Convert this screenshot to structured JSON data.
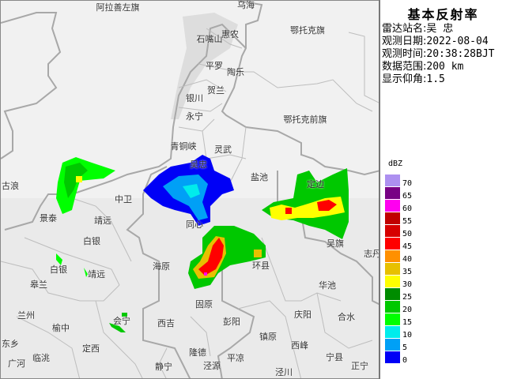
{
  "panel": {
    "title": "基本反射率",
    "rows": [
      {
        "key": "雷达站名:",
        "value": "吴 忠"
      },
      {
        "key": "观测日期:",
        "value": "2022-08-04"
      },
      {
        "key": "观测时间:",
        "value": "20:38:28BJT"
      },
      {
        "key": "数据范围:",
        "value": "200 km"
      },
      {
        "key": "显示仰角:",
        "value": "1.5"
      }
    ]
  },
  "legend": {
    "unit": "dBZ",
    "items": [
      {
        "value": "70",
        "color": "#ad90f0"
      },
      {
        "value": "65",
        "color": "#780084"
      },
      {
        "value": "60",
        "color": "#ff00f0"
      },
      {
        "value": "55",
        "color": "#c00000"
      },
      {
        "value": "50",
        "color": "#d60000"
      },
      {
        "value": "45",
        "color": "#ff0000"
      },
      {
        "value": "40",
        "color": "#ff9000"
      },
      {
        "value": "35",
        "color": "#e7c000"
      },
      {
        "value": "30",
        "color": "#ffff00"
      },
      {
        "value": "25",
        "color": "#008c00"
      },
      {
        "value": "20",
        "color": "#00c800"
      },
      {
        "value": "15",
        "color": "#00ff00"
      },
      {
        "value": "10",
        "color": "#00ecec"
      },
      {
        "value": "5",
        "color": "#00a0f6"
      },
      {
        "value": "0",
        "color": "#0000f6"
      }
    ]
  },
  "map_labels": [
    "阿拉善左旗",
    "乌海",
    "石嘴山",
    "惠农",
    "鄂托克旗",
    "平罗",
    "陶乐",
    "贺兰",
    "银川",
    "永宁",
    "鄂托克前旗",
    "青铜峡",
    "灵武",
    "吴忠",
    "盐池",
    "定边",
    "古浪",
    "中卫",
    "景泰",
    "靖远",
    "白银",
    "同心",
    "海原",
    "白银",
    "靖远",
    "环县",
    "吴旗",
    "志丹",
    "华池",
    "皋兰",
    "固原",
    "兰州",
    "会宁",
    "彭阳",
    "庆阳",
    "合水",
    "西吉",
    "榆中",
    "镇原",
    "西峰",
    "定西",
    "东乡",
    "临洮",
    "广河",
    "隆德",
    "宁县",
    "平凉",
    "正宁",
    "静宁",
    "泾源",
    "泾川"
  ]
}
